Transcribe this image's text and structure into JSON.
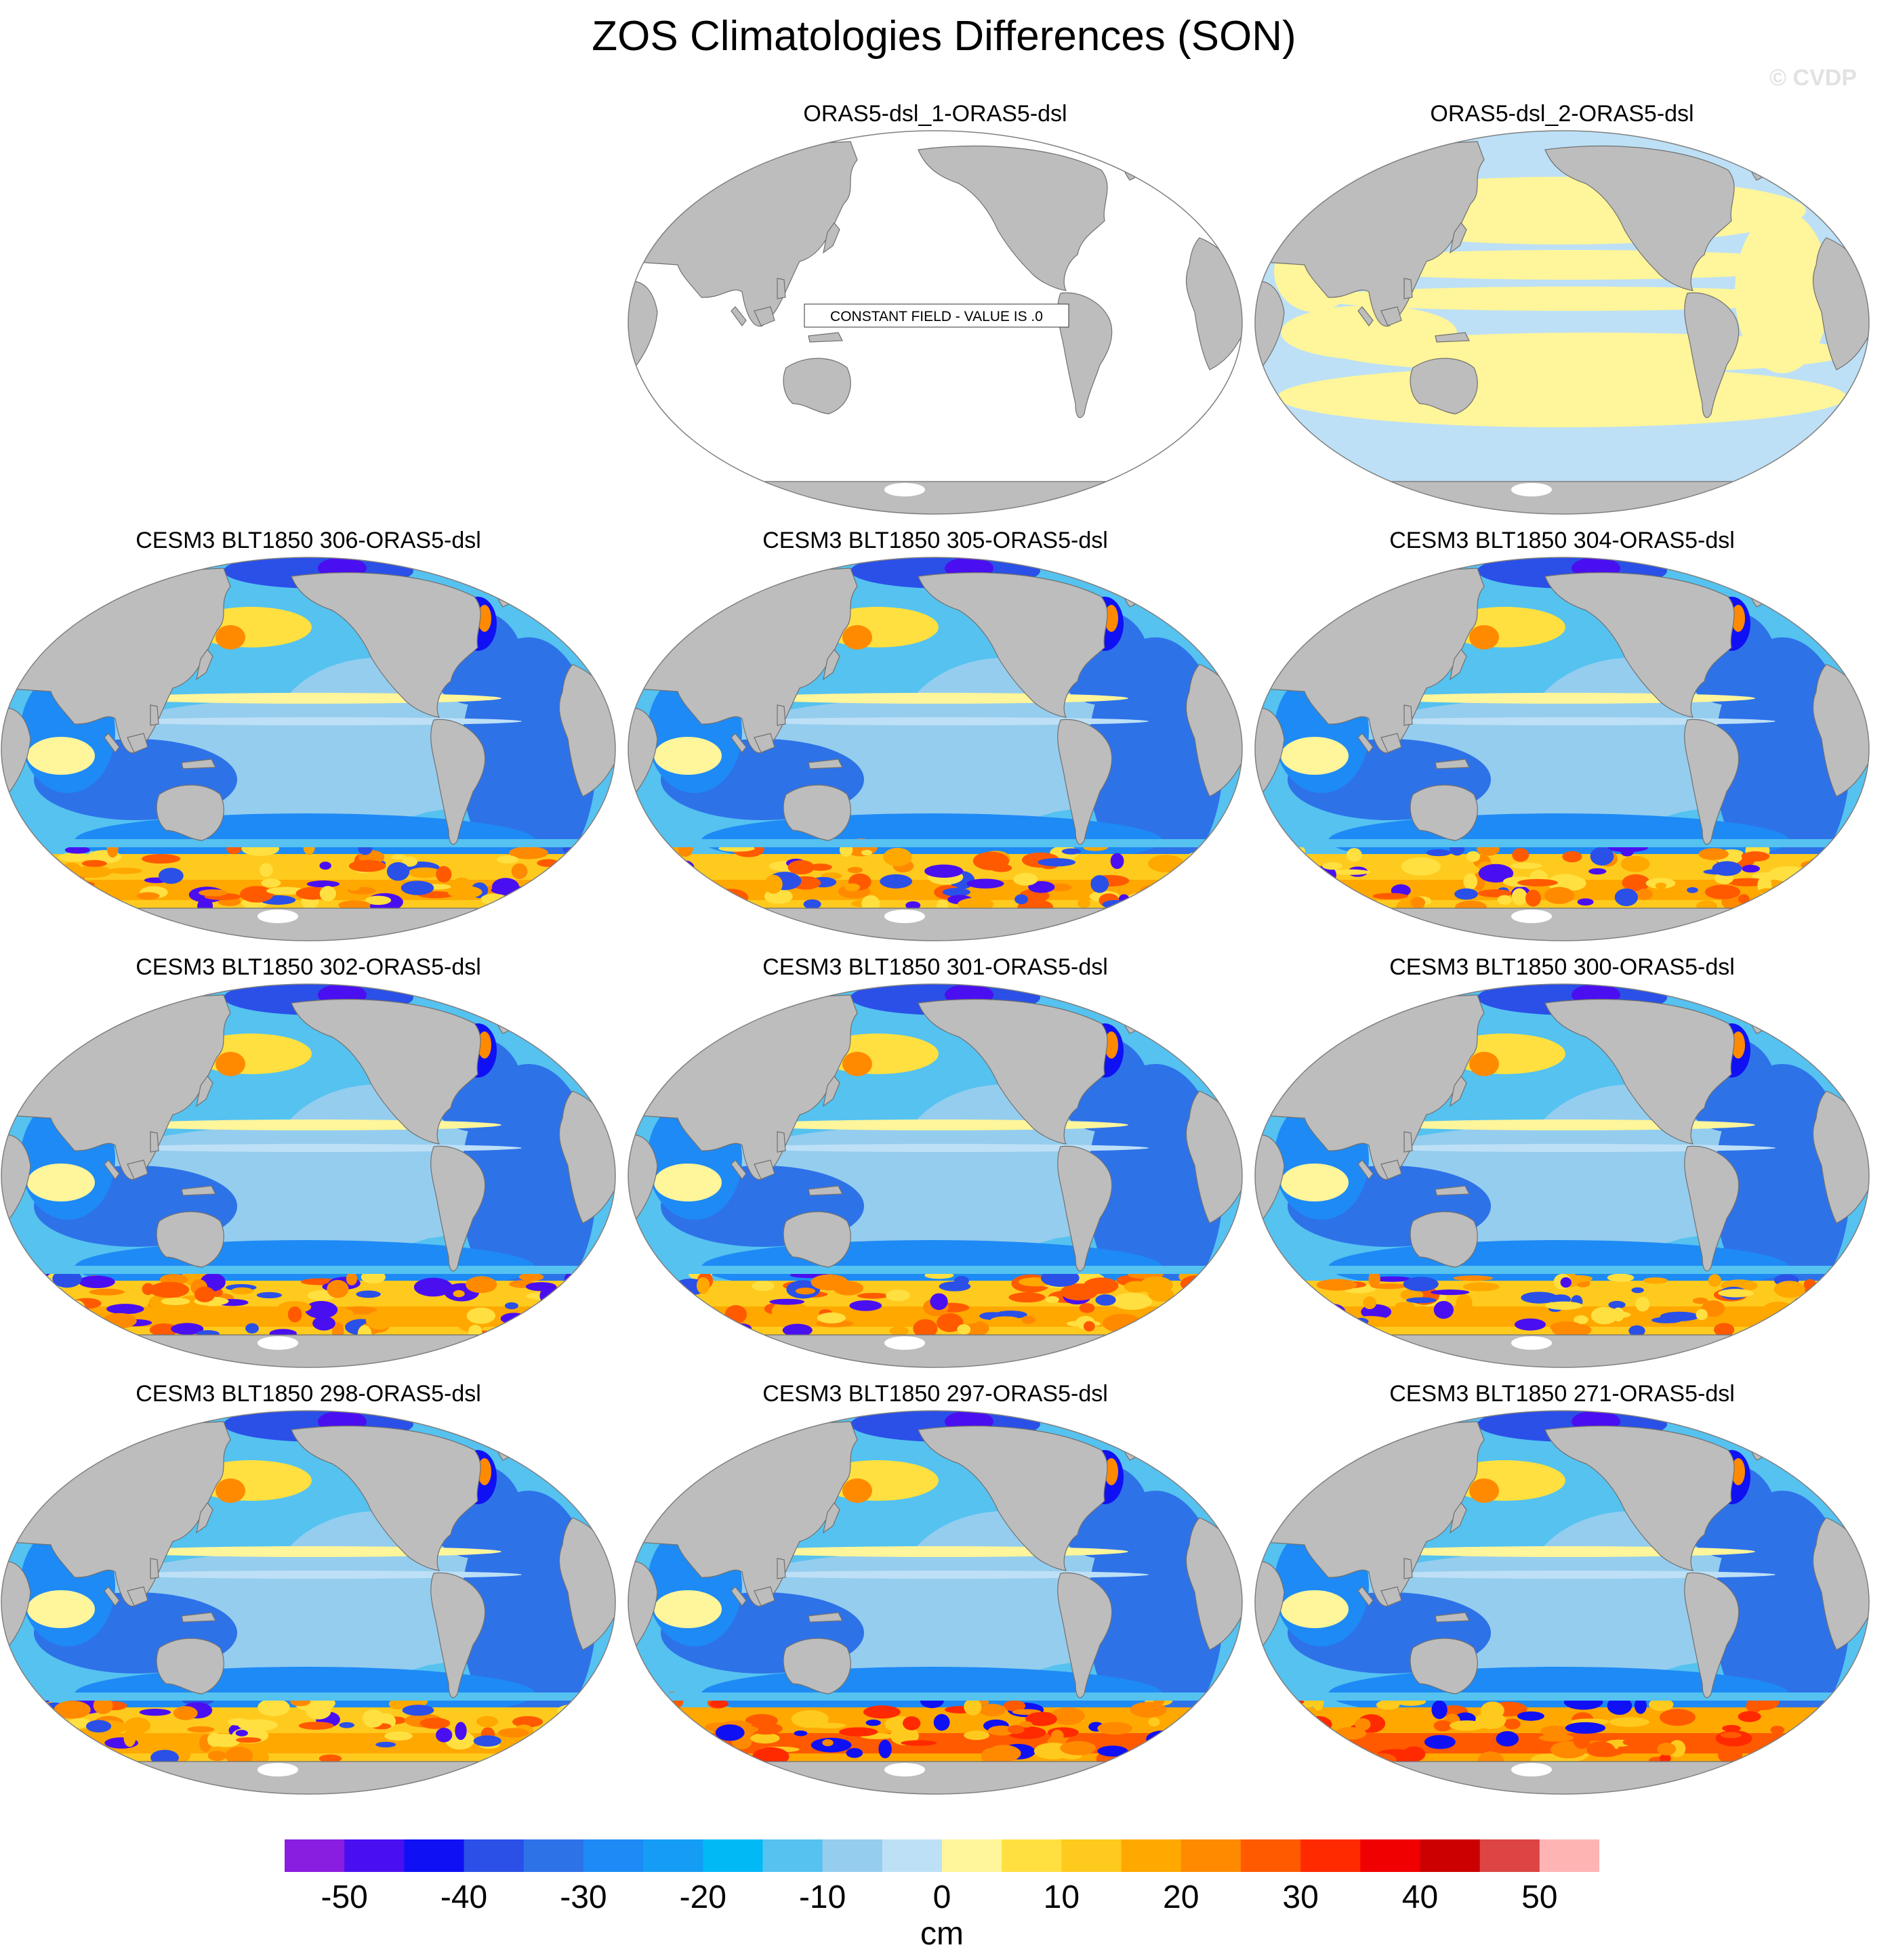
{
  "figure": {
    "title": "ZOS Climatologies Differences (SON)",
    "watermark": "© CVDP"
  },
  "panels": [
    {
      "title": "ORAS5-dsl_1-ORAS5-dsl",
      "pattern": "constant",
      "annotation": "CONSTANT FIELD - VALUE IS .0"
    },
    {
      "title": "ORAS5-dsl_2-ORAS5-dsl",
      "pattern": "small"
    },
    {
      "title": "CESM3 BLT1850 306-ORAS5-dsl",
      "pattern": "model"
    },
    {
      "title": "CESM3 BLT1850 305-ORAS5-dsl",
      "pattern": "model"
    },
    {
      "title": "CESM3 BLT1850 304-ORAS5-dsl",
      "pattern": "model"
    },
    {
      "title": "CESM3 BLT1850 302-ORAS5-dsl",
      "pattern": "model"
    },
    {
      "title": "CESM3 BLT1850 301-ORAS5-dsl",
      "pattern": "model"
    },
    {
      "title": "CESM3 BLT1850 300-ORAS5-dsl",
      "pattern": "model"
    },
    {
      "title": "CESM3 BLT1850 298-ORAS5-dsl",
      "pattern": "model"
    },
    {
      "title": "CESM3 BLT1850 297-ORAS5-dsl",
      "pattern": "model_warm"
    },
    {
      "title": "CESM3 BLT1850 271-ORAS5-dsl",
      "pattern": "model_warm"
    }
  ],
  "colorbar": {
    "unit": "cm",
    "tick_labels": [
      "-50",
      "-40",
      "-30",
      "-20",
      "-10",
      "0",
      "10",
      "20",
      "30",
      "40",
      "50"
    ],
    "colors": [
      "#8a1ee0",
      "#4a0ff0",
      "#1010f5",
      "#2a50e8",
      "#2e72e8",
      "#1e8af5",
      "#159df5",
      "#00b9f5",
      "#55c2f0",
      "#95cdee",
      "#bde0f6",
      "#fff59a",
      "#ffe040",
      "#ffca1e",
      "#ffa800",
      "#ff8a00",
      "#ff5a00",
      "#ff2a00",
      "#f00000",
      "#cc0000",
      "#dd4444",
      "#ffb4b4"
    ]
  },
  "map_colors": {
    "land": "#bdbdbd",
    "coast": "#707070",
    "border": "#808080"
  }
}
